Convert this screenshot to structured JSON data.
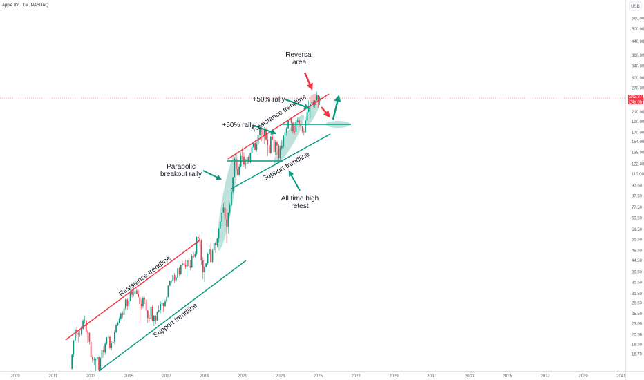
{
  "header": {
    "symbol_title": "Apple Inc., 1M, NASDAQ",
    "currency": "USD"
  },
  "price_tags": {
    "last_price": "242.87",
    "countdown": "24d 8h"
  },
  "colors": {
    "up": "#089981",
    "down": "#f23645",
    "resistance": "#f23645",
    "support": "#089981",
    "highlight": "#a8d8cf",
    "reversal_highlight": "#f7b8c0",
    "axis_text": "#5d606b"
  },
  "chart_data": {
    "type": "candlestick",
    "title": "Apple Inc., 1M, NASDAQ",
    "scale": "log",
    "x_ticks": [
      "2009",
      "2011",
      "2013",
      "2015",
      "2017",
      "2019",
      "2021",
      "2023",
      "2025",
      "2027",
      "2029",
      "2031",
      "2033",
      "2035",
      "2037",
      "2039",
      "2041"
    ],
    "y_ticks": [
      "16.70",
      "18.50",
      "20.50",
      "23.00",
      "25.50",
      "28.50",
      "31.50",
      "35.50",
      "39.50",
      "44.50",
      "49.50",
      "55.50",
      "61.50",
      "69.50",
      "77.50",
      "87.50",
      "97.50",
      "110.00",
      "122.00",
      "138.00",
      "154.00",
      "170.00",
      "190.00",
      "210.00",
      "240.00",
      "270.00",
      "300.00",
      "340.00",
      "380.00",
      "440.00",
      "500.00",
      "560.00"
    ],
    "ylim": [
      15.5,
      640
    ],
    "xlim": [
      2008.9,
      2041.3
    ],
    "grid": false,
    "last_price": 242.87,
    "candles_monthly": [
      [
        2012.0,
        14.3,
        16.8,
        15.2,
        16.6
      ],
      [
        2012.08,
        16.6,
        19.4,
        16.2,
        19.3
      ],
      [
        2012.17,
        19.3,
        22.0,
        19.1,
        21.6
      ],
      [
        2012.25,
        21.6,
        22.3,
        19.8,
        20.8
      ],
      [
        2012.33,
        20.8,
        21.2,
        19.0,
        20.5
      ],
      [
        2012.42,
        20.5,
        21.6,
        20.0,
        20.6
      ],
      [
        2012.5,
        20.6,
        22.4,
        20.2,
        21.8
      ],
      [
        2012.58,
        21.8,
        24.0,
        21.6,
        23.8
      ],
      [
        2012.67,
        23.8,
        25.0,
        23.0,
        23.8
      ],
      [
        2012.75,
        23.8,
        23.8,
        20.5,
        21.2
      ],
      [
        2012.83,
        21.2,
        21.6,
        18.8,
        20.9
      ],
      [
        2012.92,
        20.9,
        21.0,
        18.5,
        19.0
      ],
      [
        2013.0,
        19.0,
        19.4,
        16.2,
        16.2
      ],
      [
        2013.08,
        16.2,
        16.5,
        15.3,
        15.8
      ],
      [
        2013.17,
        15.8,
        16.2,
        14.9,
        15.8
      ],
      [
        2013.25,
        15.8,
        16.0,
        13.7,
        15.8
      ],
      [
        2013.33,
        15.8,
        16.6,
        15.5,
        16.2
      ],
      [
        2013.42,
        16.2,
        16.4,
        14.2,
        14.2
      ],
      [
        2013.5,
        14.2,
        16.1,
        14.0,
        16.1
      ],
      [
        2013.58,
        16.1,
        18.0,
        16.0,
        17.4
      ],
      [
        2013.67,
        17.4,
        18.2,
        16.1,
        17.0
      ],
      [
        2013.75,
        17.0,
        19.0,
        16.6,
        18.6
      ],
      [
        2013.83,
        18.6,
        20.0,
        18.4,
        19.9
      ],
      [
        2013.92,
        19.9,
        20.4,
        19.6,
        20.0
      ],
      [
        2014.0,
        20.0,
        20.3,
        17.6,
        17.9
      ],
      [
        2014.08,
        17.9,
        19.2,
        17.4,
        18.8
      ],
      [
        2014.17,
        18.8,
        19.4,
        18.6,
        19.0
      ],
      [
        2014.25,
        19.0,
        21.5,
        18.5,
        21.0
      ],
      [
        2014.33,
        21.0,
        23.0,
        20.8,
        22.6
      ],
      [
        2014.42,
        22.6,
        23.5,
        22.4,
        23.2
      ],
      [
        2014.5,
        23.2,
        24.5,
        23.0,
        24.2
      ],
      [
        2014.58,
        24.2,
        25.8,
        23.8,
        25.6
      ],
      [
        2014.67,
        25.6,
        26.2,
        24.4,
        25.2
      ],
      [
        2014.75,
        25.2,
        27.0,
        23.6,
        27.0
      ],
      [
        2014.83,
        27.0,
        29.8,
        26.6,
        29.6
      ],
      [
        2014.92,
        29.6,
        30.0,
        26.6,
        27.6
      ],
      [
        2015.0,
        27.6,
        30.0,
        26.2,
        29.2
      ],
      [
        2015.08,
        29.2,
        33.2,
        29.0,
        32.0
      ],
      [
        2015.17,
        32.0,
        33.0,
        30.2,
        31.1
      ],
      [
        2015.25,
        31.1,
        33.6,
        30.5,
        31.3
      ],
      [
        2015.33,
        31.3,
        33.2,
        31.0,
        32.5
      ],
      [
        2015.42,
        32.5,
        33.0,
        31.2,
        31.4
      ],
      [
        2015.5,
        31.4,
        32.6,
        30.6,
        30.3
      ],
      [
        2015.58,
        30.3,
        30.6,
        23.0,
        28.2
      ],
      [
        2015.67,
        28.2,
        29.6,
        26.8,
        27.6
      ],
      [
        2015.75,
        27.6,
        30.6,
        27.0,
        30.0
      ],
      [
        2015.83,
        30.0,
        30.4,
        28.2,
        29.6
      ],
      [
        2015.92,
        29.6,
        30.0,
        26.2,
        26.4
      ],
      [
        2016.0,
        26.4,
        26.6,
        23.2,
        24.4
      ],
      [
        2016.08,
        24.4,
        25.2,
        23.4,
        24.2
      ],
      [
        2016.17,
        24.2,
        27.6,
        24.0,
        27.4
      ],
      [
        2016.25,
        27.4,
        28.0,
        23.6,
        23.6
      ],
      [
        2016.33,
        23.6,
        25.2,
        22.4,
        25.0
      ],
      [
        2016.42,
        25.0,
        25.0,
        22.9,
        23.8
      ],
      [
        2016.5,
        23.8,
        26.2,
        23.6,
        26.0
      ],
      [
        2016.58,
        26.0,
        27.8,
        25.8,
        26.6
      ],
      [
        2016.67,
        26.6,
        29.0,
        25.6,
        28.2
      ],
      [
        2016.75,
        28.2,
        29.6,
        27.6,
        28.4
      ],
      [
        2016.83,
        28.4,
        28.6,
        26.0,
        27.6
      ],
      [
        2016.92,
        27.6,
        29.6,
        27.4,
        29.0
      ],
      [
        2017.0,
        29.0,
        30.6,
        28.6,
        30.3
      ],
      [
        2017.08,
        30.3,
        34.4,
        30.2,
        34.2
      ],
      [
        2017.17,
        34.2,
        36.2,
        34.0,
        35.9
      ],
      [
        2017.25,
        35.9,
        36.4,
        35.0,
        35.9
      ],
      [
        2017.33,
        35.9,
        39.2,
        35.6,
        38.2
      ],
      [
        2017.42,
        38.2,
        39.0,
        35.2,
        36.2
      ],
      [
        2017.5,
        36.2,
        37.6,
        35.6,
        37.2
      ],
      [
        2017.58,
        37.2,
        41.2,
        37.0,
        41.0
      ],
      [
        2017.67,
        41.0,
        41.6,
        37.6,
        38.5
      ],
      [
        2017.75,
        38.5,
        42.6,
        38.4,
        42.4
      ],
      [
        2017.83,
        42.4,
        44.4,
        42.0,
        43.2
      ],
      [
        2017.92,
        43.2,
        44.6,
        41.6,
        42.3
      ],
      [
        2018.0,
        42.3,
        45.0,
        40.6,
        41.8
      ],
      [
        2018.08,
        41.8,
        45.6,
        37.6,
        44.6
      ],
      [
        2018.17,
        44.6,
        45.8,
        41.2,
        42.0
      ],
      [
        2018.25,
        42.0,
        44.8,
        40.2,
        41.3
      ],
      [
        2018.33,
        41.3,
        47.6,
        41.2,
        46.7
      ],
      [
        2018.42,
        46.7,
        48.6,
        45.6,
        46.3
      ],
      [
        2018.5,
        46.3,
        48.9,
        45.8,
        47.6
      ],
      [
        2018.58,
        47.6,
        57.2,
        47.0,
        56.9
      ],
      [
        2018.67,
        56.9,
        57.4,
        53.8,
        56.4
      ],
      [
        2018.75,
        56.4,
        58.4,
        51.6,
        54.7
      ],
      [
        2018.83,
        54.7,
        55.6,
        42.6,
        44.6
      ],
      [
        2018.92,
        44.6,
        46.2,
        36.6,
        39.4
      ],
      [
        2019.0,
        39.4,
        42.2,
        35.5,
        41.6
      ],
      [
        2019.08,
        41.6,
        43.4,
        41.4,
        43.2
      ],
      [
        2019.17,
        43.2,
        48.2,
        42.4,
        47.5
      ],
      [
        2019.25,
        47.5,
        52.2,
        47.1,
        50.2
      ],
      [
        2019.33,
        50.2,
        53.8,
        43.6,
        43.8
      ],
      [
        2019.42,
        43.8,
        50.4,
        43.6,
        49.5
      ],
      [
        2019.5,
        49.5,
        55.4,
        49.4,
        53.3
      ],
      [
        2019.58,
        53.3,
        54.2,
        48.2,
        52.2
      ],
      [
        2019.67,
        52.2,
        56.6,
        51.0,
        56.0
      ],
      [
        2019.75,
        56.0,
        62.4,
        53.8,
        62.2
      ],
      [
        2019.83,
        62.2,
        67.2,
        62.0,
        66.8
      ],
      [
        2019.92,
        66.8,
        73.4,
        64.0,
        73.4
      ],
      [
        2020.0,
        73.4,
        81.0,
        73.2,
        77.4
      ],
      [
        2020.08,
        77.4,
        81.8,
        64.2,
        68.3
      ],
      [
        2020.17,
        68.3,
        76.0,
        53.2,
        63.6
      ],
      [
        2020.25,
        63.6,
        73.6,
        59.2,
        73.4
      ],
      [
        2020.33,
        73.4,
        81.0,
        71.6,
        79.5
      ],
      [
        2020.42,
        79.5,
        93.0,
        79.0,
        91.2
      ],
      [
        2020.5,
        91.2,
        106.4,
        89.2,
        106.3
      ],
      [
        2020.58,
        106.3,
        131.0,
        107.9,
        129.0
      ],
      [
        2020.67,
        129.0,
        137.9,
        103.1,
        115.8
      ],
      [
        2020.75,
        115.8,
        125.4,
        107.7,
        108.9
      ],
      [
        2020.83,
        108.9,
        121.9,
        107.3,
        119.1
      ],
      [
        2020.92,
        119.1,
        138.8,
        117.6,
        132.7
      ],
      [
        2021.0,
        132.7,
        145.1,
        126.4,
        131.9
      ],
      [
        2021.08,
        131.9,
        137.9,
        118.4,
        121.3
      ],
      [
        2021.17,
        121.3,
        128.7,
        116.2,
        122.2
      ],
      [
        2021.25,
        122.2,
        137.1,
        122.5,
        131.5
      ],
      [
        2021.33,
        131.5,
        134.1,
        122.2,
        124.6
      ],
      [
        2021.42,
        124.6,
        137.4,
        123.1,
        137.0
      ],
      [
        2021.5,
        137.0,
        150.0,
        135.8,
        145.9
      ],
      [
        2021.58,
        145.9,
        153.5,
        144.5,
        151.8
      ],
      [
        2021.67,
        151.8,
        157.3,
        141.3,
        141.5
      ],
      [
        2021.75,
        141.5,
        153.2,
        138.3,
        149.8
      ],
      [
        2021.83,
        149.8,
        165.7,
        147.5,
        165.3
      ],
      [
        2021.92,
        165.3,
        182.1,
        157.8,
        177.6
      ],
      [
        2022.0,
        177.6,
        182.9,
        154.7,
        174.8
      ],
      [
        2022.08,
        174.8,
        176.7,
        152.0,
        165.1
      ],
      [
        2022.17,
        165.1,
        179.6,
        150.1,
        174.6
      ],
      [
        2022.25,
        174.6,
        178.5,
        155.4,
        157.7
      ],
      [
        2022.33,
        157.7,
        166.5,
        132.6,
        148.8
      ],
      [
        2022.42,
        148.8,
        151.7,
        129.0,
        136.7
      ],
      [
        2022.5,
        136.7,
        163.6,
        135.6,
        162.5
      ],
      [
        2022.58,
        162.5,
        176.2,
        157.1,
        157.2
      ],
      [
        2022.67,
        157.2,
        164.3,
        138.0,
        138.2
      ],
      [
        2022.75,
        138.2,
        157.5,
        134.4,
        153.3
      ],
      [
        2022.83,
        153.3,
        155.5,
        134.4,
        148.0
      ],
      [
        2022.92,
        148.0,
        150.9,
        125.9,
        129.9
      ],
      [
        2023.0,
        129.9,
        147.2,
        124.2,
        144.3
      ],
      [
        2023.08,
        144.3,
        157.4,
        141.3,
        147.4
      ],
      [
        2023.17,
        147.4,
        165.0,
        143.9,
        164.9
      ],
      [
        2023.25,
        164.9,
        170.0,
        159.8,
        169.7
      ],
      [
        2023.33,
        169.7,
        179.4,
        164.3,
        177.3
      ],
      [
        2023.42,
        177.3,
        194.5,
        176.9,
        194.0
      ],
      [
        2023.5,
        194.0,
        198.2,
        186.6,
        196.4
      ],
      [
        2023.58,
        196.4,
        196.7,
        171.9,
        187.9
      ],
      [
        2023.67,
        187.9,
        189.9,
        167.6,
        171.2
      ],
      [
        2023.75,
        171.2,
        182.3,
        165.7,
        170.8
      ],
      [
        2023.83,
        170.8,
        192.9,
        170.1,
        189.9
      ],
      [
        2023.92,
        189.9,
        199.6,
        187.5,
        192.5
      ],
      [
        2024.0,
        192.5,
        196.4,
        179.3,
        184.4
      ],
      [
        2024.08,
        184.4,
        191.1,
        179.3,
        180.8
      ],
      [
        2024.17,
        180.8,
        180.5,
        168.5,
        171.5
      ],
      [
        2024.25,
        171.5,
        178.4,
        164.1,
        170.3
      ],
      [
        2024.33,
        170.3,
        193.0,
        169.1,
        192.3
      ],
      [
        2024.42,
        192.3,
        220.2,
        192.2,
        210.6
      ],
      [
        2024.5,
        210.6,
        237.2,
        211.9,
        222.1
      ],
      [
        2024.58,
        222.1,
        232.9,
        196.0,
        229.0
      ],
      [
        2024.67,
        229.0,
        233.1,
        213.9,
        233.0
      ],
      [
        2024.75,
        233.0,
        237.5,
        221.3,
        225.9
      ],
      [
        2024.83,
        225.9,
        237.8,
        219.7,
        237.3
      ],
      [
        2024.92,
        237.3,
        260.1,
        237.2,
        250.4
      ],
      [
        2025.0,
        250.4,
        250.4,
        219.4,
        236.0
      ],
      [
        2025.08,
        236.0,
        248.0,
        225.7,
        242.87
      ]
    ],
    "annotations": [
      {
        "label": "Resistance trendline",
        "type": "line",
        "color": "resistance"
      },
      {
        "label": "Support trendline",
        "type": "line",
        "color": "support"
      },
      {
        "label": "Resistance trendline",
        "type": "line",
        "color": "resistance"
      },
      {
        "label": "Support trendline",
        "type": "line",
        "color": "support"
      },
      {
        "label": "Parabolic breakout rally",
        "type": "callout"
      },
      {
        "label": "+50% rally",
        "type": "callout"
      },
      {
        "label": "+50% rally",
        "type": "callout"
      },
      {
        "label": "Reversal area",
        "type": "callout"
      },
      {
        "label": "All time high retest",
        "type": "callout"
      }
    ]
  },
  "labels": {
    "resistance_lower": "Resistance trendline",
    "support_lower": "Support trendline",
    "resistance_upper": "Resistance trendline",
    "support_upper": "Support trendline",
    "parabolic_line1": "Parabolic",
    "parabolic_line2": "breakout rally",
    "rally_50_a": "+50% rally",
    "rally_50_b": "+50% rally",
    "reversal_line1": "Reversal",
    "reversal_line2": "area",
    "ath_line1": "All time high",
    "ath_line2": "retest"
  }
}
